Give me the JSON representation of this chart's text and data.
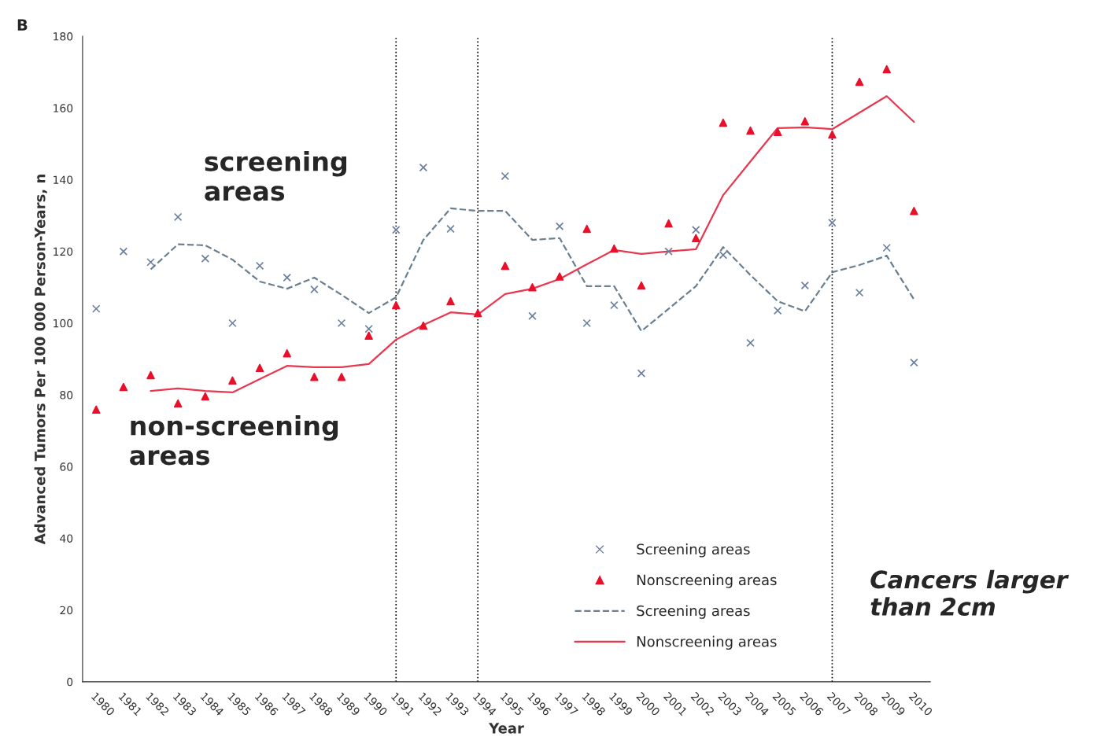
{
  "chart_data": {
    "type": "scatter",
    "xlabel": "Year",
    "ylabel": "Advanced Tumors Per 100 000 Person-Years, n",
    "x": [
      1980,
      1981,
      1982,
      1983,
      1984,
      1985,
      1986,
      1987,
      1988,
      1989,
      1990,
      1991,
      1992,
      1993,
      1994,
      1995,
      1996,
      1997,
      1998,
      1999,
      2000,
      2001,
      2002,
      2003,
      2004,
      2005,
      2006,
      2007,
      2008,
      2009,
      2010
    ],
    "series": [
      {
        "name": "Screening areas",
        "marker": "cross",
        "color": "#6a7fa0",
        "values": [
          104,
          120,
          117,
          129.6,
          118,
          100,
          116,
          112.7,
          109.4,
          100,
          98.4,
          126,
          143.4,
          126.3,
          null,
          141,
          102,
          127,
          100,
          105,
          86,
          120,
          126,
          119,
          94.5,
          103.5,
          110.5,
          128,
          108.5,
          121,
          89
        ]
      },
      {
        "name": "Nonscreening areas",
        "marker": "triangle",
        "color": "#e8102a",
        "values": [
          75.9,
          82.2,
          85.5,
          77.6,
          79.6,
          84,
          87.5,
          91.6,
          85,
          85,
          96.5,
          105,
          99.3,
          106.1,
          102.8,
          116,
          110,
          113,
          126.3,
          120.8,
          110.5,
          127.8,
          123.7,
          155.9,
          153.7,
          153.3,
          156.3,
          152.6,
          167.3,
          170.8,
          131.3
        ]
      },
      {
        "name": "Screening areas",
        "type": "line",
        "line_style": "dashed",
        "marker": "none",
        "color": "#6a8090",
        "values": [
          null,
          null,
          115,
          122,
          121.7,
          117.7,
          111.6,
          109.6,
          112.7,
          107.9,
          102.8,
          107.2,
          123.2,
          132,
          131.3,
          131.3,
          123.2,
          123.7,
          110.3,
          110.3,
          97.8,
          104,
          110.3,
          121.2,
          113.4,
          106.1,
          103.3,
          114.2,
          116.2,
          118.8,
          106.6
        ]
      },
      {
        "name": "Nonscreening areas",
        "type": "line",
        "line_style": "solid",
        "marker": "none",
        "color": "#e8384f",
        "values": [
          null,
          null,
          81.1,
          81.8,
          81.1,
          80.7,
          84.4,
          88.1,
          87.7,
          87.7,
          88.6,
          95.4,
          99.5,
          103,
          102.4,
          108.1,
          109.6,
          112.3,
          116.4,
          120.4,
          119.3,
          120,
          120.6,
          135.7,
          145.1,
          154.4,
          154.6,
          154.1,
          158.7,
          163.3,
          156.1
        ]
      }
    ],
    "xlim": [
      1979.5,
      2010.6
    ],
    "xticks": [
      1980,
      1981,
      1982,
      1983,
      1984,
      1985,
      1986,
      1987,
      1988,
      1989,
      1990,
      1991,
      1992,
      1993,
      1994,
      1995,
      1996,
      1997,
      1998,
      1999,
      2000,
      2001,
      2002,
      2003,
      2004,
      2005,
      2006,
      2007,
      2008,
      2009,
      2010
    ],
    "ylim": [
      0,
      180
    ],
    "yticks": [
      0,
      20,
      40,
      60,
      80,
      100,
      120,
      140,
      160,
      180
    ],
    "ref_lines": [
      {
        "axis": "x",
        "value": 1991,
        "line_style": "dotted",
        "color": "#000000"
      },
      {
        "axis": "x",
        "value": 1994,
        "line_style": "dotted",
        "color": "#000000"
      },
      {
        "axis": "x",
        "value": 2007,
        "line_style": "dotted",
        "color": "#000000"
      }
    ],
    "annotations": [
      "B",
      "screening\nareas",
      "non-screening\nareas",
      "Cancers larger\nthan 2cm"
    ],
    "grid": false,
    "legend": "bottom"
  }
}
